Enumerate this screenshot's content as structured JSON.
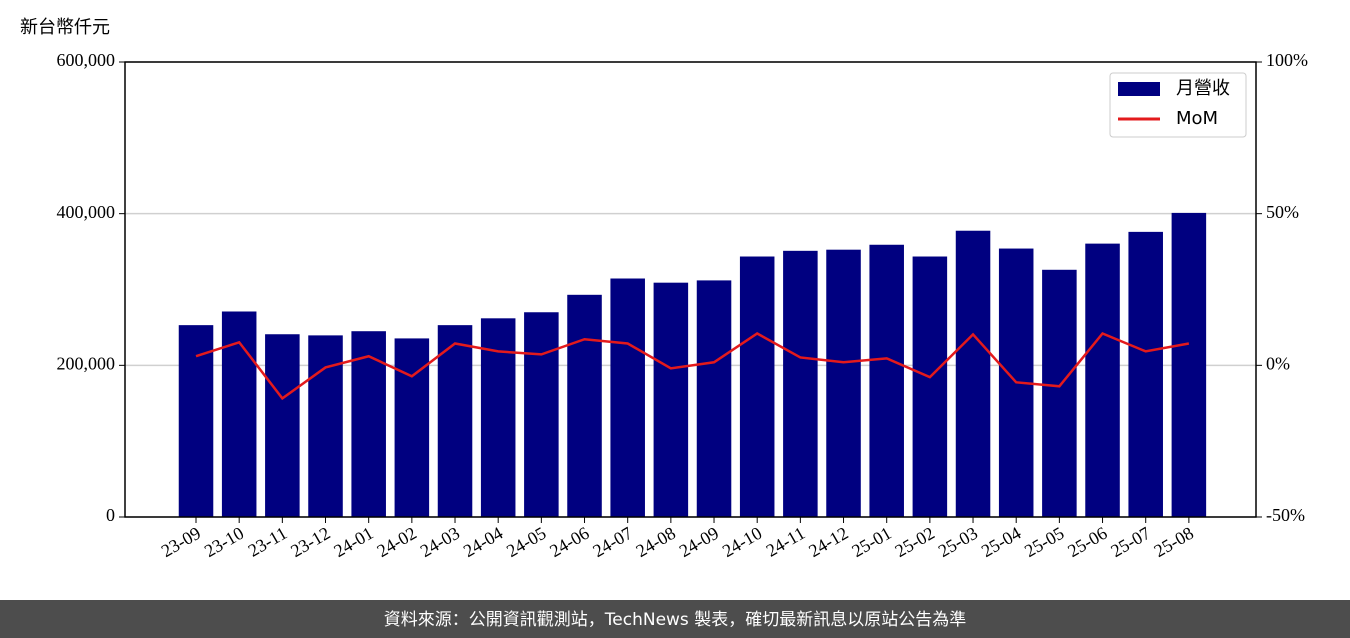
{
  "chart_data": {
    "type": "bar_line",
    "y_label": "新台幣仟元",
    "footer": "資料來源：公開資訊觀測站，TechNews 製表，確切最新訊息以原站公告為準",
    "categories": [
      "23-09",
      "23-10",
      "23-11",
      "23-12",
      "24-01",
      "24-02",
      "24-03",
      "24-04",
      "24-05",
      "24-06",
      "24-07",
      "24-08",
      "24-09",
      "24-10",
      "24-11",
      "24-12",
      "25-01",
      "25-02",
      "25-03",
      "25-04",
      "25-05",
      "25-06",
      "25-07",
      "25-08"
    ],
    "series": [
      {
        "name": "月營收",
        "type": "bar",
        "color": "#000080",
        "values": [
          253000,
          271000,
          241000,
          239500,
          245000,
          235500,
          253000,
          262000,
          270000,
          293000,
          314500,
          309000,
          312000,
          343500,
          351000,
          352500,
          359000,
          343500,
          377500,
          354000,
          326000,
          360500,
          376000,
          401000
        ]
      },
      {
        "name": "MoM",
        "type": "line",
        "color": "#e31a1c",
        "axis": "y2",
        "values": [
          3.0,
          7.6,
          -10.9,
          -0.7,
          3.0,
          -3.6,
          7.2,
          4.6,
          3.6,
          8.6,
          7.2,
          -1.0,
          1.0,
          10.5,
          2.6,
          1.0,
          2.3,
          -3.9,
          10.2,
          -5.6,
          -6.9,
          10.5,
          4.6,
          7.2
        ]
      }
    ],
    "ylim": [
      0,
      600000
    ],
    "yticks": [
      0,
      {
        "value": 200000,
        "label": "200,000"
      },
      {
        "value": 400000,
        "label": "400,000"
      },
      {
        "value": 600000,
        "label": "600,000"
      }
    ],
    "y2lim": [
      -50,
      100
    ],
    "y2ticks": [
      {
        "value": -50,
        "label": "-50%"
      },
      {
        "value": 0,
        "label": "0%"
      },
      {
        "value": 50,
        "label": "50%"
      },
      {
        "value": 100,
        "label": "100%"
      }
    ],
    "grid": true,
    "legend": "upper right"
  }
}
